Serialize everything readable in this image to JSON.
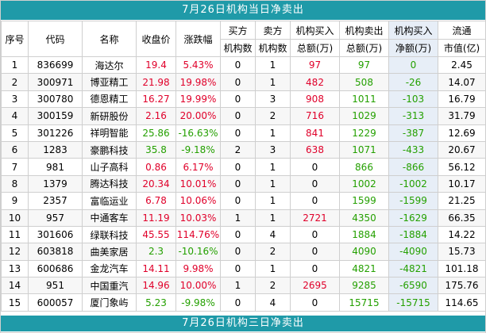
{
  "title": "7月26日机构当日净卖出",
  "footer_title": "7月26日机构三日净卖出",
  "headers": {
    "seq": "序号",
    "code": "代码",
    "name": "名称",
    "close": "收盘价",
    "change": "涨跌幅",
    "buy_top": "买方",
    "buy_bottom": "机构数",
    "sell_top": "卖方",
    "sell_bottom": "机构数",
    "inst_buy_top": "机构买入",
    "inst_buy_bottom": "总额(万)",
    "inst_sell_top": "机构卖出",
    "inst_sell_bottom": "总额(万)",
    "net_top": "机构买入",
    "net_bottom": "净额(万)",
    "cap_top": "流通",
    "cap_bottom": "市值(亿)"
  },
  "colors": {
    "banner": "#1f9aa8",
    "up": "#e0002a",
    "down": "#24a000",
    "net_bg": "#e7eef7"
  },
  "rows": [
    {
      "seq": "1",
      "code": "836699",
      "name": "海达尔",
      "close": "19.4",
      "change": "5.43%",
      "buyers": "0",
      "sellers": "1",
      "inst_buy": "97",
      "inst_sell": "97",
      "net": "0",
      "cap": "2.45",
      "dir": "up",
      "buy_dir": "up",
      "sell_dir": "down",
      "net_dir": "down"
    },
    {
      "seq": "2",
      "code": "300971",
      "name": "博亚精工",
      "close": "21.98",
      "change": "19.98%",
      "buyers": "0",
      "sellers": "1",
      "inst_buy": "482",
      "inst_sell": "508",
      "net": "-26",
      "cap": "14.07",
      "dir": "up",
      "buy_dir": "up",
      "sell_dir": "down",
      "net_dir": "down"
    },
    {
      "seq": "3",
      "code": "300780",
      "name": "德恩精工",
      "close": "16.27",
      "change": "19.99%",
      "buyers": "0",
      "sellers": "3",
      "inst_buy": "908",
      "inst_sell": "1011",
      "net": "-103",
      "cap": "16.79",
      "dir": "up",
      "buy_dir": "up",
      "sell_dir": "down",
      "net_dir": "down"
    },
    {
      "seq": "4",
      "code": "300159",
      "name": "新研股份",
      "close": "2.16",
      "change": "20.00%",
      "buyers": "0",
      "sellers": "2",
      "inst_buy": "716",
      "inst_sell": "1029",
      "net": "-313",
      "cap": "31.79",
      "dir": "up",
      "buy_dir": "up",
      "sell_dir": "down",
      "net_dir": "down"
    },
    {
      "seq": "5",
      "code": "301226",
      "name": "祥明智能",
      "close": "25.86",
      "change": "-16.63%",
      "buyers": "0",
      "sellers": "1",
      "inst_buy": "841",
      "inst_sell": "1229",
      "net": "-387",
      "cap": "12.69",
      "dir": "down",
      "buy_dir": "up",
      "sell_dir": "down",
      "net_dir": "down"
    },
    {
      "seq": "6",
      "code": "1283",
      "name": "豪鹏科技",
      "close": "35.8",
      "change": "-9.18%",
      "buyers": "2",
      "sellers": "3",
      "inst_buy": "638",
      "inst_sell": "1071",
      "net": "-433",
      "cap": "20.67",
      "dir": "down",
      "buy_dir": "up",
      "sell_dir": "down",
      "net_dir": "down"
    },
    {
      "seq": "7",
      "code": "981",
      "name": "山子高科",
      "close": "0.86",
      "change": "6.17%",
      "buyers": "0",
      "sellers": "1",
      "inst_buy": "0",
      "inst_sell": "866",
      "net": "-866",
      "cap": "56.12",
      "dir": "up",
      "buy_dir": "neutral",
      "sell_dir": "down",
      "net_dir": "down"
    },
    {
      "seq": "8",
      "code": "1379",
      "name": "腾达科技",
      "close": "20.34",
      "change": "10.01%",
      "buyers": "0",
      "sellers": "1",
      "inst_buy": "0",
      "inst_sell": "1002",
      "net": "-1002",
      "cap": "10.17",
      "dir": "up",
      "buy_dir": "neutral",
      "sell_dir": "down",
      "net_dir": "down"
    },
    {
      "seq": "9",
      "code": "2357",
      "name": "富临运业",
      "close": "6.78",
      "change": "10.06%",
      "buyers": "0",
      "sellers": "1",
      "inst_buy": "0",
      "inst_sell": "1599",
      "net": "-1599",
      "cap": "21.25",
      "dir": "up",
      "buy_dir": "neutral",
      "sell_dir": "down",
      "net_dir": "down"
    },
    {
      "seq": "10",
      "code": "957",
      "name": "中通客车",
      "close": "11.19",
      "change": "10.03%",
      "buyers": "1",
      "sellers": "1",
      "inst_buy": "2721",
      "inst_sell": "4350",
      "net": "-1629",
      "cap": "66.35",
      "dir": "up",
      "buy_dir": "up",
      "sell_dir": "down",
      "net_dir": "down"
    },
    {
      "seq": "11",
      "code": "301606",
      "name": "绿联科技",
      "close": "45.55",
      "change": "114.76%",
      "buyers": "0",
      "sellers": "4",
      "inst_buy": "0",
      "inst_sell": "1884",
      "net": "-1884",
      "cap": "14.22",
      "dir": "up",
      "buy_dir": "neutral",
      "sell_dir": "down",
      "net_dir": "down"
    },
    {
      "seq": "12",
      "code": "603818",
      "name": "曲美家居",
      "close": "2.3",
      "change": "-10.16%",
      "buyers": "0",
      "sellers": "2",
      "inst_buy": "0",
      "inst_sell": "4090",
      "net": "-4090",
      "cap": "15.73",
      "dir": "down",
      "buy_dir": "neutral",
      "sell_dir": "down",
      "net_dir": "down"
    },
    {
      "seq": "13",
      "code": "600686",
      "name": "金龙汽车",
      "close": "14.11",
      "change": "9.98%",
      "buyers": "0",
      "sellers": "1",
      "inst_buy": "0",
      "inst_sell": "4821",
      "net": "-4821",
      "cap": "101.18",
      "dir": "up",
      "buy_dir": "neutral",
      "sell_dir": "down",
      "net_dir": "down"
    },
    {
      "seq": "14",
      "code": "951",
      "name": "中国重汽",
      "close": "14.96",
      "change": "10.00%",
      "buyers": "1",
      "sellers": "2",
      "inst_buy": "2695",
      "inst_sell": "9285",
      "net": "-6590",
      "cap": "175.76",
      "dir": "up",
      "buy_dir": "up",
      "sell_dir": "down",
      "net_dir": "down"
    },
    {
      "seq": "15",
      "code": "600057",
      "name": "厦门象屿",
      "close": "5.23",
      "change": "-9.98%",
      "buyers": "0",
      "sellers": "4",
      "inst_buy": "0",
      "inst_sell": "15715",
      "net": "-15715",
      "cap": "114.65",
      "dir": "down",
      "buy_dir": "neutral",
      "sell_dir": "down",
      "net_dir": "down"
    }
  ]
}
